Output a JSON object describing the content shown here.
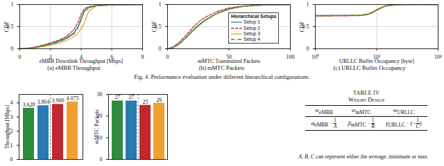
{
  "figure": {
    "caption": "Fig. 4. Performance evaluation under different hierarchical configurations."
  },
  "chart_data": [
    {
      "type": "line",
      "subcaption": "(a) eMBB Throughput",
      "x_label": "eMBB Downlink Throughput [Mbps]",
      "y_label": "CDF",
      "x": [
        0,
        0.5,
        1,
        1.5,
        2,
        2.5,
        3,
        3.5,
        3.8,
        4,
        4.2,
        4.5,
        5,
        6,
        8
      ],
      "xlim": [
        0,
        8
      ],
      "xticks": [
        0,
        2,
        4,
        6,
        8
      ],
      "ylim": [
        0,
        1
      ],
      "yticks": [
        0,
        0.5,
        1
      ],
      "grid": true,
      "legend": false,
      "series": [
        {
          "name": "Setup 1",
          "color": "#2a7ab0",
          "line_style": "solid",
          "values": [
            0,
            0.01,
            0.03,
            0.07,
            0.12,
            0.17,
            0.24,
            0.35,
            0.5,
            0.68,
            0.85,
            0.93,
            0.97,
            0.99,
            1
          ]
        },
        {
          "name": "Setup 2",
          "color": "#c0282d",
          "line_style": "dashed",
          "values": [
            0,
            0.01,
            0.04,
            0.08,
            0.13,
            0.19,
            0.27,
            0.42,
            0.6,
            0.78,
            0.9,
            0.95,
            0.98,
            0.99,
            1
          ]
        },
        {
          "name": "Setup 3",
          "color": "#f0a030",
          "line_style": "solid",
          "values": [
            0,
            0.005,
            0.02,
            0.05,
            0.08,
            0.12,
            0.18,
            0.27,
            0.36,
            0.45,
            0.58,
            0.85,
            0.97,
            0.99,
            1
          ]
        },
        {
          "name": "Setup 4",
          "color": "#2e8b3e",
          "line_style": "dashdot",
          "values": [
            0,
            0.01,
            0.03,
            0.06,
            0.1,
            0.15,
            0.22,
            0.33,
            0.48,
            0.66,
            0.84,
            0.93,
            0.97,
            0.99,
            1
          ]
        }
      ]
    },
    {
      "type": "line",
      "subcaption": "(b) mMTC Packets",
      "x_label": "mMTC Transmitted Packets",
      "y_label": "CDF",
      "x": [
        0,
        5,
        10,
        15,
        20,
        25,
        30,
        40,
        50,
        60,
        70,
        80,
        100
      ],
      "xlim": [
        0,
        100
      ],
      "xticks": [
        0,
        50,
        100
      ],
      "ylim": [
        0,
        1
      ],
      "yticks": [
        0,
        0.5,
        1
      ],
      "grid": true,
      "legend": "right",
      "legend_title": "Hierarchical Setups",
      "series": [
        {
          "name": "Setup 1",
          "color": "#2a7ab0",
          "line_style": "solid",
          "values": [
            0,
            0.03,
            0.12,
            0.25,
            0.4,
            0.53,
            0.64,
            0.8,
            0.9,
            0.95,
            0.98,
            0.99,
            1
          ]
        },
        {
          "name": "Setup 2",
          "color": "#c0282d",
          "line_style": "dashed",
          "values": [
            0,
            0.05,
            0.16,
            0.3,
            0.46,
            0.6,
            0.7,
            0.84,
            0.92,
            0.96,
            0.98,
            0.99,
            1
          ]
        },
        {
          "name": "Setup 3",
          "color": "#f0a030",
          "line_style": "solid",
          "values": [
            0,
            0.03,
            0.11,
            0.24,
            0.38,
            0.51,
            0.62,
            0.79,
            0.89,
            0.95,
            0.97,
            0.99,
            1
          ]
        },
        {
          "name": "Setup 4",
          "color": "#2e8b3e",
          "line_style": "dashdot",
          "values": [
            0,
            0.03,
            0.12,
            0.25,
            0.4,
            0.52,
            0.63,
            0.8,
            0.9,
            0.95,
            0.98,
            0.99,
            1
          ]
        }
      ]
    },
    {
      "type": "line",
      "subcaption": "(c) URLLC Buffer Occupancy",
      "x_label": "URLLC Buffer Occupancy [byte]",
      "y_label": "CDF",
      "log": "x",
      "x": [
        1,
        10,
        30,
        50,
        70,
        100,
        150,
        200,
        300,
        500,
        1000,
        10000
      ],
      "xlim": [
        1,
        10000
      ],
      "xticks": [
        {
          "value": 1,
          "label": "10⁰"
        },
        {
          "value": 100,
          "label": "10²"
        },
        {
          "value": 10000,
          "label": "10⁴"
        }
      ],
      "ylim": [
        0,
        1
      ],
      "yticks": [
        0,
        0.5,
        1
      ],
      "grid": true,
      "legend": false,
      "series": [
        {
          "name": "Setup 1",
          "color": "#2a7ab0",
          "line_style": "solid",
          "values": [
            0.75,
            0.755,
            0.76,
            0.78,
            0.82,
            0.88,
            0.94,
            0.97,
            0.985,
            0.995,
            1,
            1
          ]
        },
        {
          "name": "Setup 2",
          "color": "#c0282d",
          "line_style": "dashed",
          "values": [
            0.74,
            0.745,
            0.75,
            0.77,
            0.81,
            0.87,
            0.93,
            0.965,
            0.98,
            0.993,
            1,
            1
          ]
        },
        {
          "name": "Setup 3",
          "color": "#f0a030",
          "line_style": "solid",
          "values": [
            0.75,
            0.755,
            0.765,
            0.785,
            0.83,
            0.89,
            0.945,
            0.972,
            0.987,
            0.996,
            1,
            1
          ]
        },
        {
          "name": "Setup 4",
          "color": "#2e8b3e",
          "line_style": "dashdot",
          "values": [
            0.745,
            0.75,
            0.757,
            0.775,
            0.815,
            0.875,
            0.935,
            0.968,
            0.983,
            0.994,
            1,
            1
          ]
        }
      ]
    },
    {
      "type": "bar",
      "y_label": "Throughput [Mbps]",
      "categories": [
        "Setup 4",
        "Setup 1",
        "Setup 2",
        "Setup 3"
      ],
      "values": [
        3.628,
        3.804,
        3.9,
        4.075
      ],
      "value_labels": [
        "3.628",
        "3.804",
        "3.900",
        "4.075"
      ],
      "colors": [
        "#2e8b3e",
        "#2a7ab0",
        "#c0282d",
        "#f0a030"
      ],
      "ylim": [
        0,
        4.6
      ],
      "yticks": [
        0,
        1,
        2,
        3,
        4
      ],
      "data_labels": true,
      "tick_labels": "y",
      "grid": false
    },
    {
      "type": "bar",
      "y_label": "mMTC Packets",
      "categories": [
        "Setup 4",
        "Setup 1",
        "Setup 2",
        "Setup 3"
      ],
      "values": [
        27,
        27,
        25,
        26
      ],
      "colors": [
        "#2e8b3e",
        "#2a7ab0",
        "#c0282d",
        "#f0a030"
      ],
      "ylim": [
        0,
        30
      ],
      "yticks": [
        0,
        10,
        20,
        30
      ],
      "data_labels": true,
      "tick_labels": "y",
      "grid": false
    }
  ],
  "table": {
    "caption": "TABLE IV",
    "title": "Weight Design",
    "header": [
      {
        "base": "w",
        "sub": "eMBB"
      },
      {
        "base": "w",
        "sub": "mMTC"
      },
      {
        "base": "w",
        "sub": "URLLC"
      }
    ],
    "rows": [
      [
        {
          "coef": "α",
          "sub": "eMBB",
          "op": "·",
          "num": "1",
          "den": "A"
        },
        {
          "coef": "β",
          "sub": "mMTC",
          "op": "·",
          "num": "1",
          "den": "B"
        },
        {
          "coef": "γ",
          "sub": "URLLC",
          "op": "·",
          "prefix": "(−",
          "num": "1",
          "den": "C",
          "suffix": ")"
        }
      ]
    ]
  },
  "paragraph": [
    {
      "text": "A, B, C",
      "italic": true
    },
    {
      "text": " can represent either the average, minimum or max"
    }
  ]
}
